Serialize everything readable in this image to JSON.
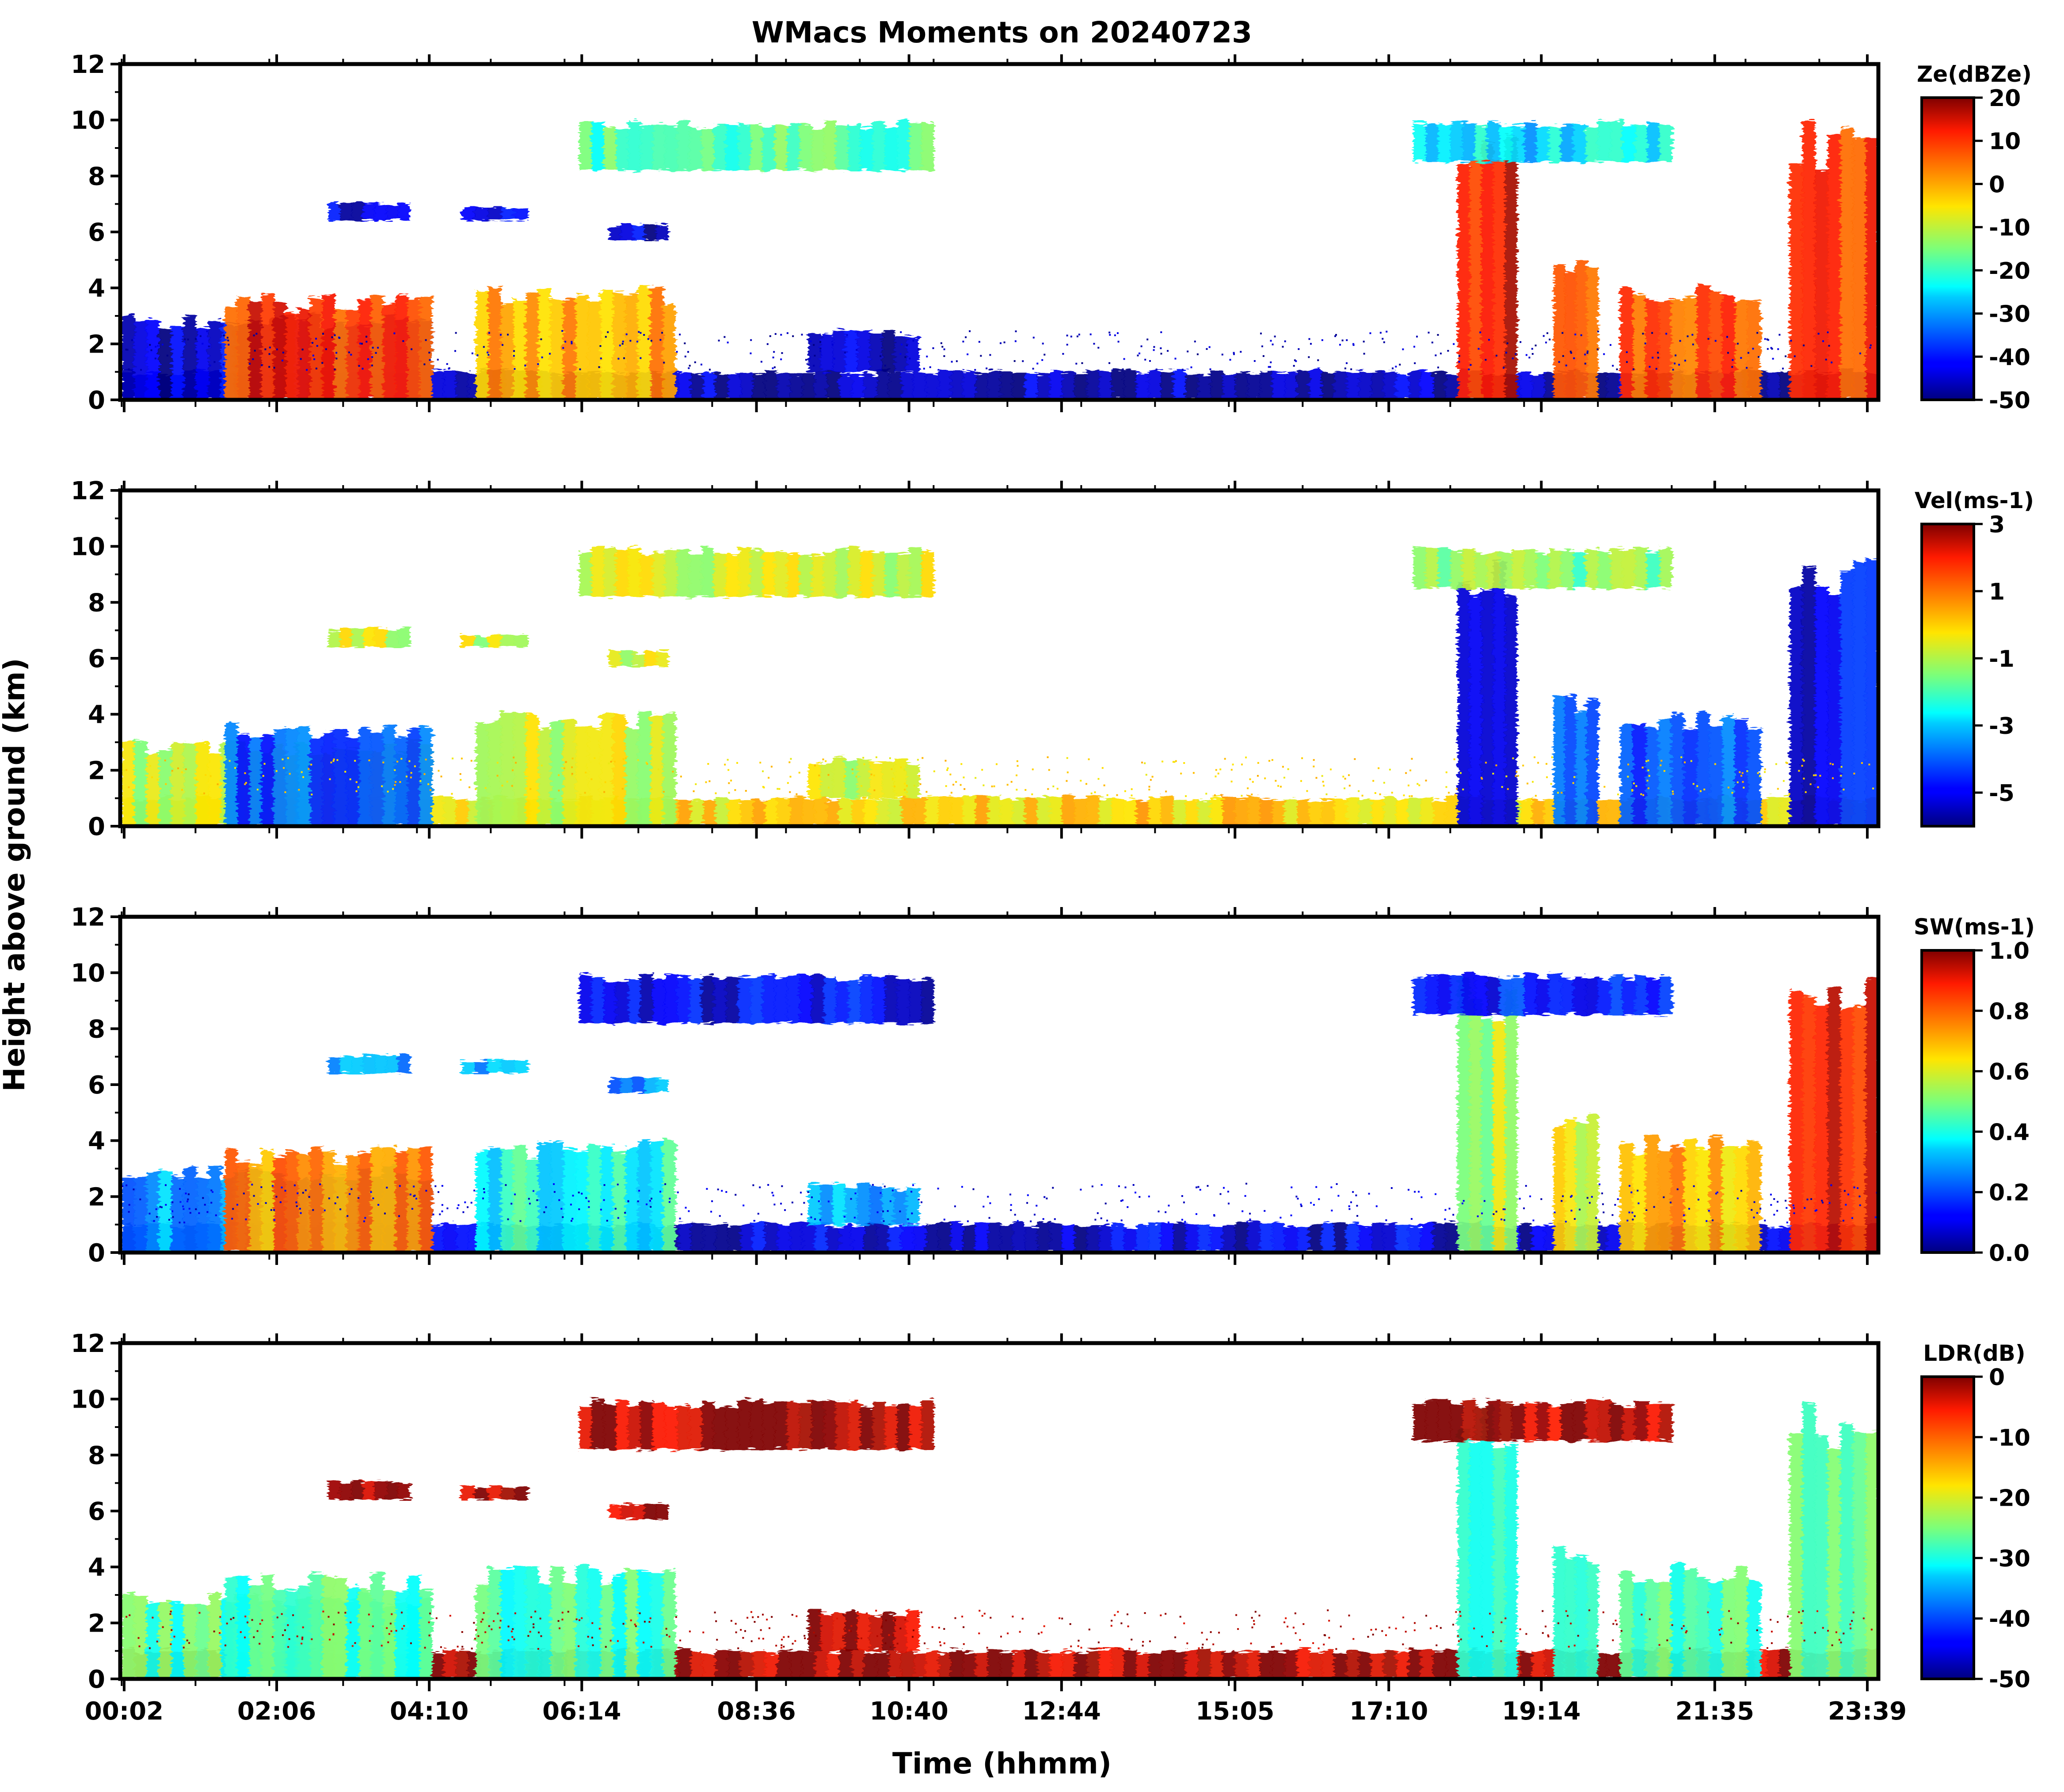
{
  "figure": {
    "title": "WMacs Moments on 20240723",
    "ylabel": "Height above ground (km)",
    "xlabel": "Time (hhmm)"
  },
  "chart_data": {
    "type": "heatmap",
    "x_tick_labels": [
      "00:02",
      "02:06",
      "04:10",
      "06:14",
      "08:36",
      "10:40",
      "12:44",
      "15:05",
      "17:10",
      "19:14",
      "21:35",
      "23:39"
    ],
    "x_tick_hours": [
      0.0333,
      2.1,
      4.1667,
      6.2333,
      8.6,
      10.6667,
      12.7333,
      15.0833,
      17.1667,
      19.2333,
      21.5833,
      23.65
    ],
    "x_range_hours": [
      -0.02,
      23.8
    ],
    "ylim": [
      0,
      12
    ],
    "y_ticks": [
      0,
      2,
      4,
      6,
      8,
      10,
      12
    ],
    "echoes": [
      {
        "name": "boundary-layer clutter",
        "t0": 0.0,
        "t1": 23.8,
        "h0": 0.0,
        "h1": 1.1
      },
      {
        "name": "morning low cloud",
        "t0": 0.0,
        "t1": 4.2,
        "h0": 0.0,
        "h1": 3.1
      },
      {
        "name": "morning precip core",
        "t0": 1.4,
        "t1": 4.2,
        "h0": 0.0,
        "h1": 3.8
      },
      {
        "name": "mid-morning cloud",
        "t0": 4.8,
        "t1": 7.5,
        "h0": 0.0,
        "h1": 4.1
      },
      {
        "name": "cirrus 10 km",
        "t0": 6.2,
        "t1": 11.0,
        "h0": 8.2,
        "h1": 10.0
      },
      {
        "name": "midlevel patch A",
        "t0": 2.8,
        "t1": 3.9,
        "h0": 6.4,
        "h1": 7.1
      },
      {
        "name": "midlevel patch B",
        "t0": 4.6,
        "t1": 5.5,
        "h0": 6.4,
        "h1": 6.9
      },
      {
        "name": "midlevel patch C",
        "t0": 6.6,
        "t1": 7.4,
        "h0": 5.7,
        "h1": 6.3
      },
      {
        "name": "late-morning shallow",
        "t0": 9.3,
        "t1": 10.8,
        "h0": 1.0,
        "h1": 2.5
      },
      {
        "name": "evening storm 1",
        "t0": 18.1,
        "t1": 18.9,
        "h0": 0.0,
        "h1": 10.0
      },
      {
        "name": "evening storm 2",
        "t0": 19.4,
        "t1": 20.0,
        "h0": 0.0,
        "h1": 5.0
      },
      {
        "name": "evening cells",
        "t0": 20.3,
        "t1": 22.2,
        "h0": 0.0,
        "h1": 4.2
      },
      {
        "name": "late storm",
        "t0": 22.6,
        "t1": 23.8,
        "h0": 0.0,
        "h1": 10.0
      },
      {
        "name": "evening cirrus",
        "t0": 17.5,
        "t1": 21.0,
        "h0": 8.5,
        "h1": 10.0
      }
    ],
    "panels": [
      {
        "id": "reflectivity",
        "variable": "Ze",
        "colorbar_label": "Ze(dBZe)",
        "vmin": -50,
        "vmax": 20,
        "colorbar_ticks": [
          20,
          10,
          0,
          -10,
          -20,
          -30,
          -40,
          -50
        ],
        "colorbar_tick_labels": [
          "20",
          "10",
          "0",
          "-10",
          "-20",
          "-30",
          "-40",
          "-50"
        ],
        "colormap": "jet"
      },
      {
        "id": "velocity",
        "variable": "Vel",
        "colorbar_label": "Vel(ms-1)",
        "vmin": -6,
        "vmax": 3,
        "colorbar_ticks": [
          3,
          1,
          -1,
          -3,
          -5
        ],
        "colorbar_tick_labels": [
          "3",
          "1",
          "-1",
          "-3",
          "-5"
        ],
        "colormap": "jet"
      },
      {
        "id": "spectrum-width",
        "variable": "SW",
        "colorbar_label": "SW(ms-1)",
        "vmin": 0.0,
        "vmax": 1.0,
        "colorbar_ticks": [
          1.0,
          0.8,
          0.6,
          0.4,
          0.2,
          0.0
        ],
        "colorbar_tick_labels": [
          "1.0",
          "0.8",
          "0.6",
          "0.4",
          "0.2",
          "0.0"
        ],
        "colormap": "jet"
      },
      {
        "id": "ldr",
        "variable": "LDR",
        "colorbar_label": "LDR(dB)",
        "vmin": -50,
        "vmax": 0,
        "colorbar_ticks": [
          0,
          -10,
          -20,
          -30,
          -40,
          -50
        ],
        "colorbar_tick_labels": [
          "0",
          "-10",
          "-20",
          "-30",
          "-40",
          "-50"
        ],
        "colormap": "jet"
      }
    ]
  }
}
